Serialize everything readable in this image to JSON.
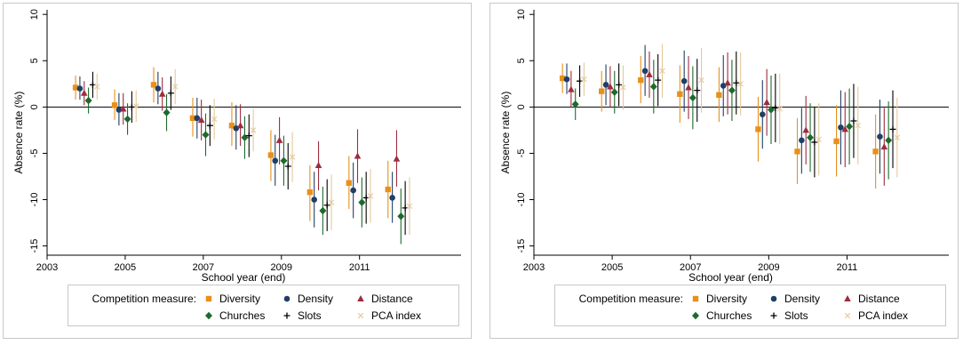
{
  "colors": {
    "diversity": "#e8901a",
    "density": "#1f3f66",
    "distance": "#9e2b3e",
    "churches": "#1c6b2a",
    "slots": "#000000",
    "pca": "#e4c99b",
    "frame": "#c8c8c8",
    "axis": "#000000",
    "zero_line": "#000000"
  },
  "chart_data": [
    {
      "type": "scatter",
      "subtype": "point-range (coefficient with confidence interval)",
      "xlabel": "School year (end)",
      "ylabel": "Absence rate (%)",
      "xlim": [
        2003.0,
        2013.6
      ],
      "ylim": [
        -16,
        10.5
      ],
      "x_ticks": [
        2003,
        2005,
        2007,
        2009,
        2011
      ],
      "y_ticks": [
        10,
        5,
        0,
        -5,
        -10,
        -15
      ],
      "y_tick_labels": [
        "10",
        "5",
        "0",
        "-5",
        "-10",
        "-15"
      ],
      "grid": false,
      "reference_line_y": 0,
      "legend_title": "Competition measure:",
      "legend_position": "bottom",
      "x": [
        2004,
        2005,
        2006,
        2007,
        2008,
        2009,
        2010,
        2011,
        2012
      ],
      "series": [
        {
          "name": "Diversity",
          "marker": "square",
          "values": [
            2.1,
            0.2,
            2.4,
            -1.2,
            -2.0,
            -5.2,
            -9.2,
            -8.2,
            -8.9
          ],
          "lower": [
            0.8,
            -1.4,
            0.5,
            -3.2,
            -4.2,
            -8.0,
            -12.3,
            -11.0,
            -12.0
          ],
          "upper": [
            3.4,
            1.9,
            4.3,
            1.0,
            0.5,
            -2.5,
            -6.3,
            -5.3,
            -5.8
          ]
        },
        {
          "name": "Density",
          "marker": "circle",
          "values": [
            2.0,
            -0.3,
            2.0,
            -1.2,
            -2.3,
            -5.8,
            -10.0,
            -9.0,
            -9.8
          ],
          "lower": [
            0.8,
            -2.0,
            0.3,
            -3.4,
            -4.6,
            -8.5,
            -13.0,
            -12.0,
            -12.5
          ],
          "upper": [
            3.3,
            1.5,
            3.8,
            1.0,
            0.2,
            -3.0,
            -7.0,
            -6.0,
            -7.0
          ]
        },
        {
          "name": "Distance",
          "marker": "triangle",
          "values": [
            1.5,
            -0.2,
            1.4,
            -1.4,
            -2.0,
            -3.6,
            -6.3,
            -5.3,
            -5.6
          ],
          "lower": [
            0.2,
            -1.9,
            -0.4,
            -3.6,
            -4.2,
            -6.2,
            -9.0,
            -8.2,
            -8.6
          ],
          "upper": [
            2.8,
            1.5,
            3.2,
            0.8,
            0.3,
            -1.1,
            -3.7,
            -2.4,
            -2.5
          ]
        },
        {
          "name": "Churches",
          "marker": "diamond",
          "values": [
            0.7,
            -1.3,
            -0.6,
            -3.0,
            -3.3,
            -5.8,
            -11.2,
            -10.3,
            -11.8
          ],
          "lower": [
            -0.7,
            -3.0,
            -2.6,
            -5.3,
            -5.6,
            -8.5,
            -13.8,
            -13.0,
            -14.8
          ],
          "upper": [
            2.1,
            0.4,
            1.4,
            -0.7,
            -1.0,
            -3.1,
            -8.6,
            -7.6,
            -8.8
          ]
        },
        {
          "name": "Slots",
          "marker": "plus",
          "values": [
            2.4,
            0.0,
            1.5,
            -2.0,
            -3.1,
            -6.4,
            -10.6,
            -9.8,
            -10.9
          ],
          "lower": [
            1.0,
            -1.7,
            -0.3,
            -4.2,
            -5.4,
            -8.9,
            -13.4,
            -12.6,
            -13.8
          ],
          "upper": [
            3.8,
            1.7,
            3.3,
            0.2,
            -0.8,
            -3.9,
            -7.8,
            -7.0,
            -8.0
          ]
        },
        {
          "name": "PCA index",
          "marker": "x",
          "values": [
            2.2,
            0.1,
            2.2,
            -1.3,
            -2.5,
            -5.4,
            -10.3,
            -9.6,
            -10.7
          ],
          "lower": [
            0.8,
            -1.6,
            0.3,
            -3.5,
            -4.8,
            -8.1,
            -13.3,
            -12.5,
            -13.8
          ],
          "upper": [
            3.6,
            1.8,
            4.1,
            0.9,
            -0.2,
            -2.7,
            -7.3,
            -6.7,
            -7.6
          ]
        }
      ]
    },
    {
      "type": "scatter",
      "subtype": "point-range (coefficient with confidence interval)",
      "xlabel": "School year (end)",
      "ylabel": "Absence rate (%)",
      "xlim": [
        2003.0,
        2013.6
      ],
      "ylim": [
        -16,
        10.5
      ],
      "x_ticks": [
        2003,
        2005,
        2007,
        2009,
        2011
      ],
      "y_ticks": [
        10,
        5,
        0,
        -5,
        -10,
        -15
      ],
      "y_tick_labels": [
        "10",
        "5",
        "0",
        "-5",
        "-10",
        "-15"
      ],
      "grid": false,
      "reference_line_y": 0,
      "legend_title": "Competition measure:",
      "legend_position": "bottom",
      "x": [
        2004,
        2005,
        2006,
        2007,
        2008,
        2009,
        2010,
        2011,
        2012
      ],
      "series": [
        {
          "name": "Diversity",
          "marker": "square",
          "values": [
            3.1,
            1.7,
            2.9,
            1.4,
            1.3,
            -2.4,
            -4.8,
            -3.7,
            -4.8
          ],
          "lower": [
            1.5,
            -0.5,
            0.4,
            -1.7,
            -1.6,
            -5.9,
            -8.3,
            -7.5,
            -8.8
          ],
          "upper": [
            4.7,
            3.9,
            5.5,
            4.5,
            4.3,
            1.1,
            -1.2,
            0.2,
            -0.8
          ]
        },
        {
          "name": "Density",
          "marker": "circle",
          "values": [
            3.0,
            2.4,
            3.9,
            2.8,
            2.3,
            -0.8,
            -3.6,
            -2.2,
            -3.2
          ],
          "lower": [
            1.4,
            0.2,
            1.2,
            -0.5,
            -1.0,
            -4.5,
            -7.2,
            -6.2,
            -7.2
          ],
          "upper": [
            4.7,
            4.6,
            6.7,
            6.1,
            5.6,
            2.9,
            -0.1,
            1.8,
            0.8
          ]
        },
        {
          "name": "Distance",
          "marker": "triangle",
          "values": [
            1.9,
            2.2,
            3.5,
            2.1,
            2.6,
            0.5,
            -2.5,
            -2.4,
            -4.3
          ],
          "lower": [
            0.0,
            0.0,
            1.0,
            -1.3,
            -0.8,
            -3.1,
            -6.2,
            -6.5,
            -8.5
          ],
          "upper": [
            3.9,
            4.4,
            6.0,
            5.5,
            5.9,
            4.1,
            1.2,
            1.6,
            -0.1
          ]
        },
        {
          "name": "Churches",
          "marker": "diamond",
          "values": [
            0.3,
            1.6,
            2.2,
            1.0,
            1.8,
            -0.3,
            -3.3,
            -2.1,
            -3.6
          ],
          "lower": [
            -1.4,
            -0.7,
            -0.7,
            -2.4,
            -1.5,
            -4.0,
            -7.0,
            -6.2,
            -7.8
          ],
          "upper": [
            2.0,
            3.9,
            5.1,
            4.4,
            5.1,
            3.4,
            0.4,
            2.0,
            0.6
          ]
        },
        {
          "name": "Slots",
          "marker": "plus",
          "values": [
            2.8,
            2.4,
            2.9,
            1.8,
            2.6,
            -0.1,
            -3.8,
            -1.5,
            -2.4
          ],
          "lower": [
            1.1,
            0.1,
            0.1,
            -1.6,
            -0.8,
            -3.8,
            -7.6,
            -5.5,
            -6.6
          ],
          "upper": [
            4.5,
            4.7,
            5.7,
            5.2,
            6.0,
            3.6,
            0.0,
            2.5,
            1.8
          ]
        },
        {
          "name": "PCA index",
          "marker": "x",
          "values": [
            3.0,
            2.1,
            3.9,
            2.9,
            2.5,
            -0.2,
            -3.5,
            -2.0,
            -3.3
          ],
          "lower": [
            1.2,
            -0.3,
            1.0,
            -0.6,
            -0.9,
            -4.0,
            -7.4,
            -6.2,
            -7.6
          ],
          "upper": [
            4.8,
            4.5,
            6.8,
            6.4,
            5.9,
            3.6,
            0.4,
            2.2,
            1.0
          ]
        }
      ]
    }
  ]
}
